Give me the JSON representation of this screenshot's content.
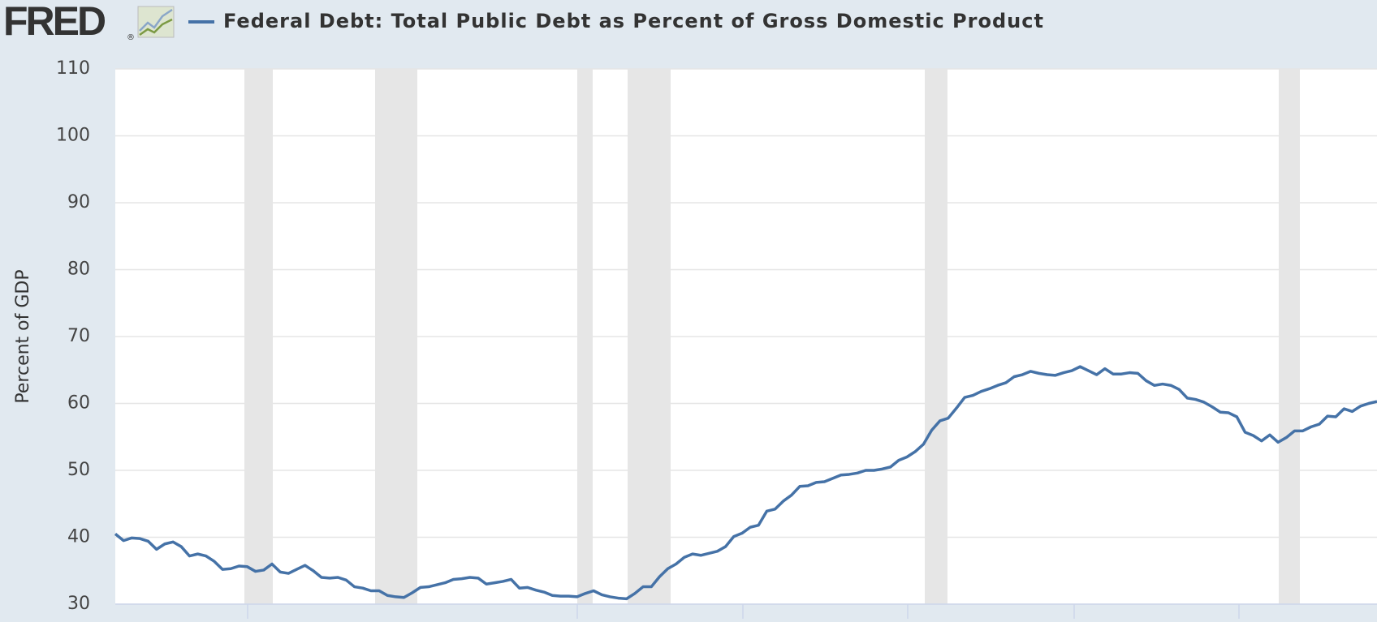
{
  "logo": "FRED",
  "logo_registered": "®",
  "chart_data": {
    "type": "line",
    "y_axis_label": "Percent of GDP",
    "ylim": [
      30,
      110
    ],
    "yticks": [
      30,
      40,
      50,
      60,
      70,
      80,
      90,
      100,
      110
    ],
    "grid": true,
    "series": [
      {
        "name": "Federal Debt: Total Public Debt as Percent of Gross Domestic Product",
        "color": "#4572a7",
        "values": [
          40.5,
          39.5,
          39.9,
          39.8,
          39.4,
          38.2,
          39.0,
          39.3,
          38.6,
          37.2,
          37.5,
          37.2,
          36.4,
          35.2,
          35.3,
          35.7,
          35.6,
          34.9,
          35.1,
          36.0,
          34.8,
          34.6,
          35.2,
          35.8,
          35.0,
          34.0,
          33.9,
          34.0,
          33.6,
          32.6,
          32.4,
          32.0,
          32.0,
          31.3,
          31.1,
          31.0,
          31.7,
          32.5,
          32.6,
          32.9,
          33.2,
          33.7,
          33.8,
          34.0,
          33.9,
          33.0,
          33.2,
          33.4,
          33.7,
          32.4,
          32.5,
          32.1,
          31.8,
          31.3,
          31.2,
          31.2,
          31.1,
          31.6,
          32.0,
          31.4,
          31.1,
          30.9,
          30.8,
          31.6,
          32.6,
          32.6,
          34.1,
          35.3,
          36.0,
          37.0,
          37.5,
          37.3,
          37.6,
          37.9,
          38.6,
          40.1,
          40.6,
          41.5,
          41.8,
          43.9,
          44.2,
          45.4,
          46.3,
          47.6,
          47.7,
          48.2,
          48.3,
          48.8,
          49.3,
          49.4,
          49.6,
          50.0,
          50.0,
          50.2,
          50.5,
          51.5,
          52.0,
          52.8,
          53.9,
          56.0,
          57.4,
          57.8,
          59.3,
          60.9,
          61.2,
          61.8,
          62.2,
          62.7,
          63.1,
          64.0,
          64.3,
          64.8,
          64.5,
          64.3,
          64.2,
          64.6,
          64.9,
          65.5,
          64.9,
          64.3,
          65.2,
          64.4,
          64.4,
          64.6,
          64.5,
          63.4,
          62.7,
          62.9,
          62.7,
          62.1,
          60.8,
          60.6,
          60.2,
          59.5,
          58.7,
          58.6,
          58.0,
          55.7,
          55.2,
          54.4,
          55.3,
          54.2,
          54.9,
          55.9,
          55.9,
          56.5,
          56.9,
          58.1,
          58.0,
          59.2,
          58.8,
          59.6,
          60.0,
          60.3
        ]
      }
    ]
  }
}
